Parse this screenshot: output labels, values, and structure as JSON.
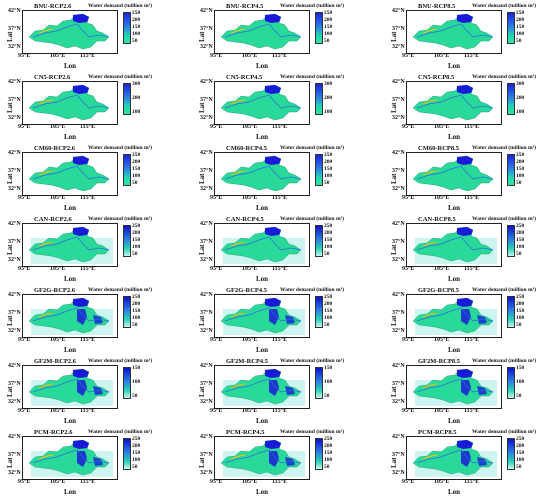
{
  "axes": {
    "lat_label": "Lat",
    "lon_label": "Lon",
    "yticks": [
      "42°N",
      "37°N",
      "32°N"
    ],
    "xticks": [
      "95°E",
      "105°E",
      "115°E"
    ]
  },
  "colorbar_title": "Water demand (million m³)",
  "colors": {
    "basin": "#28d99a",
    "upper_basin": "#1a1bd6",
    "outer_haze": "#bff2ee",
    "river": "#2b6ae0",
    "stream": "#f2c200"
  },
  "panels": [
    {
      "title": "BNU-RCP2.6",
      "cb_ticks": [
        "250",
        "200",
        "150",
        "100",
        "50"
      ]
    },
    {
      "title": "BNU-RCP4.5",
      "cb_ticks": [
        "250",
        "200",
        "150",
        "100",
        "50"
      ]
    },
    {
      "title": "BNU-RCP8.5",
      "cb_ticks": [
        "250",
        "200",
        "150",
        "100",
        "50"
      ]
    },
    {
      "title": "CN5-RCP2.6",
      "cb_ticks": [
        "300",
        "200",
        "100"
      ]
    },
    {
      "title": "CN5-RCP4.5",
      "cb_ticks": [
        "300",
        "200",
        "100"
      ]
    },
    {
      "title": "CN5-RCP8.5",
      "cb_ticks": [
        "300",
        "200",
        "100"
      ]
    },
    {
      "title": "CM60-RCP2.6",
      "cb_ticks": [
        "250",
        "200",
        "150",
        "100",
        "50"
      ]
    },
    {
      "title": "CM60-RCP4.5",
      "cb_ticks": [
        "250",
        "200",
        "150",
        "100",
        "50"
      ]
    },
    {
      "title": "CM60-RCP8.5",
      "cb_ticks": [
        "250",
        "200",
        "150",
        "100",
        "50"
      ]
    },
    {
      "title": "CAN-RCP2.6",
      "cb_ticks": [
        "250",
        "200",
        "150",
        "100",
        "50"
      ]
    },
    {
      "title": "CAN-RCP4.5",
      "cb_ticks": [
        "250",
        "200",
        "150",
        "100",
        "50"
      ]
    },
    {
      "title": "CAN-RCP8.5",
      "cb_ticks": [
        "250",
        "200",
        "150",
        "100",
        "50"
      ]
    },
    {
      "title": "GF2G-RCP2.6",
      "cb_ticks": [
        "250",
        "200",
        "150",
        "100",
        "50"
      ]
    },
    {
      "title": "GF2G-RCP4.5",
      "cb_ticks": [
        "250",
        "200",
        "150",
        "100",
        "50"
      ]
    },
    {
      "title": "GF2G-RCP8.5",
      "cb_ticks": [
        "250",
        "200",
        "150",
        "100",
        "50"
      ]
    },
    {
      "title": "GF2M-RCP2.6",
      "cb_ticks": [
        "150",
        "100",
        "50"
      ]
    },
    {
      "title": "GF2M-RCP4.5",
      "cb_ticks": [
        "150",
        "100",
        "50"
      ]
    },
    {
      "title": "GF2M-RCP8.5",
      "cb_ticks": [
        "150",
        "100",
        "50"
      ]
    },
    {
      "title": "PCM-RCP2.6",
      "cb_ticks": [
        "250",
        "200",
        "150",
        "100",
        "50"
      ]
    },
    {
      "title": "PCM-RCP4.5",
      "cb_ticks": [
        "250",
        "200",
        "150",
        "100",
        "50"
      ]
    },
    {
      "title": "PCM-RCP8.5",
      "cb_ticks": [
        "250",
        "200",
        "150",
        "100",
        "50"
      ]
    }
  ]
}
